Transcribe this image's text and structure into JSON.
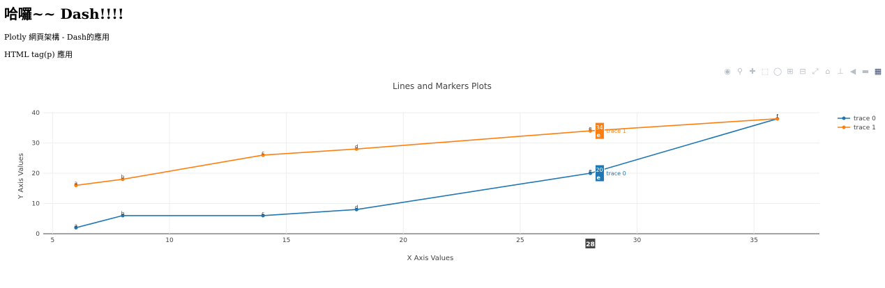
{
  "page": {
    "heading": "哈囉~~ Dash!!!!",
    "paragraph1": "Plotly 網頁架構 - Dash的應用",
    "paragraph2": "HTML tag(p) 應用"
  },
  "modebar": {
    "icons": [
      "camera-icon",
      "zoom-icon",
      "pan-icon",
      "box-select-icon",
      "lasso-icon",
      "zoom-in-icon",
      "zoom-out-icon",
      "autoscale-icon",
      "reset-axes-icon",
      "spike-lines-icon",
      "hover-closest-icon",
      "hover-compare-icon",
      "plotly-logo-icon"
    ]
  },
  "chart_data": {
    "type": "line",
    "title": "Lines and Markers Plots",
    "xlabel": "X Axis Values",
    "ylabel": "Y Axis Values",
    "xlim": [
      4.6,
      37.8
    ],
    "ylim": [
      0,
      40
    ],
    "xticks": [
      5,
      10,
      15,
      20,
      25,
      30,
      35
    ],
    "yticks": [
      0,
      10,
      20,
      30,
      40
    ],
    "grid": true,
    "legend_position": "top-right",
    "series": [
      {
        "name": "trace 0",
        "color": "#1f77b4",
        "x": [
          6,
          8,
          14,
          18,
          28,
          36
        ],
        "y": [
          2,
          6,
          6,
          8,
          20,
          38
        ],
        "point_labels": [
          "a",
          "b",
          "c",
          "d",
          "e",
          "f"
        ]
      },
      {
        "name": "trace 1",
        "color": "#ff7f0e",
        "x": [
          6,
          8,
          14,
          18,
          28,
          36
        ],
        "y": [
          16,
          18,
          26,
          28,
          34,
          38
        ],
        "point_labels": [
          "a",
          "b",
          "c",
          "d",
          "e",
          "f"
        ]
      }
    ],
    "hover": {
      "x": 28,
      "x_label": "28",
      "labels": [
        {
          "series": "trace 0",
          "value": "20",
          "text": "e"
        },
        {
          "series": "trace 1",
          "value": "34",
          "text": "e"
        }
      ]
    }
  }
}
